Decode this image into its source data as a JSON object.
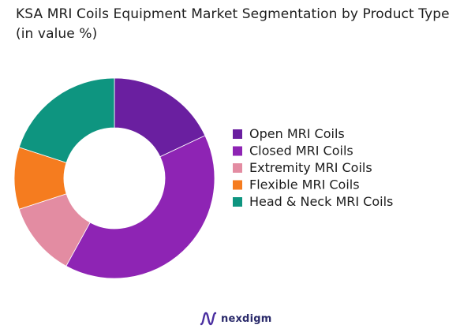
{
  "chart_data": {
    "type": "pie",
    "title": "KSA MRI Coils Equipment Market Segmentation by Product Type (in value %)",
    "series": [
      {
        "name": "Open MRI Coils",
        "value": 18,
        "color": "#6a1fa0"
      },
      {
        "name": "Closed MRI Coils",
        "value": 40,
        "color": "#8e24b4"
      },
      {
        "name": "Extremity MRI Coils",
        "value": 12,
        "color": "#e38ca2"
      },
      {
        "name": "Flexible MRI Coils",
        "value": 10,
        "color": "#f57c1f"
      },
      {
        "name": "Head & Neck MRI Coils",
        "value": 20,
        "color": "#0e9580"
      }
    ],
    "legend_position": "right",
    "donut": true
  },
  "brand": {
    "name": "nexdigm",
    "color": "#2b2b6b"
  }
}
